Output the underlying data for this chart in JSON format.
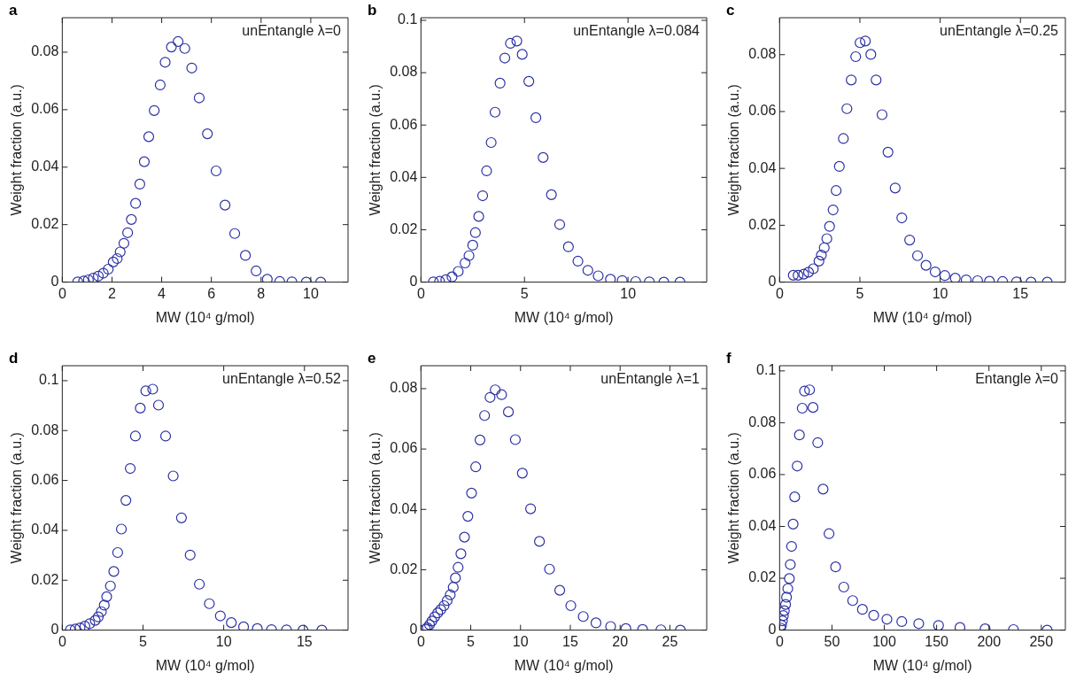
{
  "chart_data": [
    {
      "type": "scatter",
      "title": "a",
      "xlabel": "MW (10⁴ g/mol)",
      "ylabel": "Weight fraction (a.u.)",
      "annotations": [
        "unEntangle λ=0"
      ],
      "marker": "circle",
      "grid": false,
      "xlim": [
        0,
        11.5
      ],
      "ylim": [
        0,
        0.092
      ],
      "xticks": [
        0,
        2,
        4,
        6,
        8,
        10
      ],
      "yticks": [
        0,
        0.02,
        0.04,
        0.06,
        0.08
      ],
      "series": [
        {
          "color": "#2b31a3",
          "x": [
            0.62,
            0.86,
            1.05,
            1.25,
            1.45,
            1.65,
            1.85,
            2.05,
            2.21,
            2.33,
            2.48,
            2.63,
            2.78,
            2.95,
            3.12,
            3.3,
            3.48,
            3.7,
            3.94,
            4.14,
            4.39,
            4.66,
            4.93,
            5.21,
            5.51,
            5.84,
            6.19,
            6.55,
            6.94,
            7.37,
            7.8,
            8.25,
            8.75,
            9.24,
            9.82,
            10.4
          ],
          "values": [
            0.0001,
            0.0004,
            0.0008,
            0.0014,
            0.0021,
            0.0031,
            0.0045,
            0.007,
            0.0082,
            0.0105,
            0.0135,
            0.0172,
            0.0218,
            0.0274,
            0.0341,
            0.0419,
            0.0506,
            0.0597,
            0.0686,
            0.0765,
            0.0818,
            0.0837,
            0.0813,
            0.0745,
            0.0641,
            0.0516,
            0.0387,
            0.0268,
            0.0169,
            0.0093,
            0.0039,
            0.001,
            0.0002,
            0.0001,
            0,
            0
          ]
        }
      ]
    },
    {
      "type": "scatter",
      "title": "b",
      "xlabel": "MW (10⁴ g/mol)",
      "ylabel": "Weight fraction (a.u.)",
      "annotations": [
        "unEntangle λ=0.084"
      ],
      "marker": "circle",
      "grid": false,
      "xlim": [
        0,
        13.8
      ],
      "ylim": [
        0,
        0.101
      ],
      "xticks": [
        0,
        5,
        10
      ],
      "yticks": [
        0,
        0.02,
        0.04,
        0.06,
        0.08,
        0.1
      ],
      "series": [
        {
          "color": "#2b31a3",
          "x": [
            0.6,
            0.9,
            1.2,
            1.5,
            1.8,
            2.13,
            2.32,
            2.5,
            2.63,
            2.79,
            2.98,
            3.17,
            3.39,
            3.58,
            3.82,
            4.05,
            4.32,
            4.63,
            4.89,
            5.21,
            5.55,
            5.9,
            6.3,
            6.7,
            7.12,
            7.58,
            8.06,
            8.56,
            9.15,
            9.72,
            10.37,
            11.03,
            11.73,
            12.51
          ],
          "values": [
            0.0001,
            0.0003,
            0.0009,
            0.002,
            0.0041,
            0.0073,
            0.0101,
            0.0141,
            0.0189,
            0.0251,
            0.033,
            0.0425,
            0.0533,
            0.0649,
            0.076,
            0.0856,
            0.0912,
            0.0921,
            0.087,
            0.0767,
            0.0628,
            0.0476,
            0.0334,
            0.022,
            0.0135,
            0.008,
            0.0045,
            0.0024,
            0.0011,
            0.0006,
            0.0002,
            0.0001,
            0,
            0
          ]
        }
      ]
    },
    {
      "type": "scatter",
      "title": "c",
      "xlabel": "MW (10⁴ g/mol)",
      "ylabel": "Weight fraction (a.u.)",
      "annotations": [
        "unEntangle λ=0.25"
      ],
      "marker": "circle",
      "grid": false,
      "xlim": [
        0,
        17.8
      ],
      "ylim": [
        0,
        0.093
      ],
      "xticks": [
        0,
        5,
        10,
        15
      ],
      "yticks": [
        0,
        0.02,
        0.04,
        0.06,
        0.08
      ],
      "series": [
        {
          "color": "#2b31a3",
          "x": [
            0.85,
            1.15,
            1.5,
            1.8,
            2.1,
            2.45,
            2.6,
            2.78,
            2.94,
            3.11,
            3.33,
            3.52,
            3.72,
            3.97,
            4.19,
            4.46,
            4.74,
            5.01,
            5.34,
            5.68,
            6.01,
            6.38,
            6.75,
            7.2,
            7.61,
            8.1,
            8.59,
            9.12,
            9.69,
            10.29,
            10.94,
            11.62,
            12.33,
            13.07,
            13.89,
            14.76,
            15.66,
            16.67
          ],
          "values": [
            0.0024,
            0.0024,
            0.0028,
            0.0035,
            0.0047,
            0.0074,
            0.0095,
            0.0121,
            0.0153,
            0.0196,
            0.0254,
            0.0322,
            0.0407,
            0.0505,
            0.061,
            0.0711,
            0.0793,
            0.0842,
            0.0848,
            0.0801,
            0.0711,
            0.0589,
            0.0457,
            0.0331,
            0.0226,
            0.0148,
            0.0093,
            0.0059,
            0.0036,
            0.0023,
            0.0014,
            0.0008,
            0.0005,
            0.0003,
            0.0002,
            0.0001,
            0,
            0
          ]
        }
      ]
    },
    {
      "type": "scatter",
      "title": "d",
      "xlabel": "MW (10⁴ g/mol)",
      "ylabel": "Weight fraction (a.u.)",
      "annotations": [
        "unEntangle λ=0.52"
      ],
      "marker": "circle",
      "grid": false,
      "xlim": [
        0,
        17.7
      ],
      "ylim": [
        0,
        0.106
      ],
      "xticks": [
        0,
        5,
        10,
        15
      ],
      "yticks": [
        0,
        0.02,
        0.04,
        0.06,
        0.08,
        0.1
      ],
      "series": [
        {
          "color": "#2b31a3",
          "x": [
            0.5,
            0.8,
            1.1,
            1.4,
            1.7,
            2.04,
            2.23,
            2.42,
            2.6,
            2.75,
            2.98,
            3.19,
            3.43,
            3.66,
            3.94,
            4.21,
            4.53,
            4.83,
            5.17,
            5.6,
            5.96,
            6.4,
            6.87,
            7.38,
            7.92,
            8.49,
            9.11,
            9.79,
            10.47,
            11.23,
            12.08,
            12.96,
            13.89,
            14.91,
            16.08
          ],
          "values": [
            0.0001,
            0.0004,
            0.0009,
            0.0016,
            0.0026,
            0.0039,
            0.0053,
            0.0074,
            0.01,
            0.0134,
            0.0177,
            0.0235,
            0.0311,
            0.0405,
            0.052,
            0.0648,
            0.0778,
            0.089,
            0.0959,
            0.0966,
            0.0902,
            0.0778,
            0.0618,
            0.045,
            0.0301,
            0.0184,
            0.0106,
            0.0057,
            0.003,
            0.0013,
            0.0006,
            0.0002,
            0.0001,
            0,
            0
          ]
        }
      ]
    },
    {
      "type": "scatter",
      "title": "e",
      "xlabel": "MW (10⁴ g/mol)",
      "ylabel": "Weight fraction (a.u.)",
      "annotations": [
        "unEntangle λ=1"
      ],
      "marker": "circle",
      "grid": false,
      "xlim": [
        0,
        28.7
      ],
      "ylim": [
        0,
        0.0876
      ],
      "xticks": [
        0,
        5,
        10,
        15,
        20,
        25
      ],
      "yticks": [
        0,
        0.02,
        0.04,
        0.06,
        0.08
      ],
      "series": [
        {
          "color": "#2b31a3",
          "x": [
            0.46,
            0.64,
            0.86,
            1.1,
            1.38,
            1.68,
            1.99,
            2.32,
            2.63,
            2.94,
            3.24,
            3.46,
            3.73,
            4.01,
            4.37,
            4.71,
            5.08,
            5.5,
            5.93,
            6.39,
            6.94,
            7.46,
            8.1,
            8.78,
            9.48,
            10.18,
            11.01,
            11.9,
            12.91,
            13.94,
            15.05,
            16.3,
            17.58,
            19.05,
            20.58,
            22.26,
            24.1,
            26.05
          ],
          "values": [
            0.0003,
            0.0008,
            0.0018,
            0.003,
            0.0044,
            0.0057,
            0.0068,
            0.0081,
            0.0098,
            0.0117,
            0.0142,
            0.0173,
            0.0208,
            0.0253,
            0.0308,
            0.0377,
            0.0454,
            0.0541,
            0.063,
            0.0711,
            0.0771,
            0.0796,
            0.078,
            0.0723,
            0.0631,
            0.052,
            0.0402,
            0.0294,
            0.0202,
            0.0132,
            0.0081,
            0.0045,
            0.0024,
            0.0012,
            0.0005,
            0.0002,
            0.0001,
            0
          ]
        }
      ]
    },
    {
      "type": "scatter",
      "title": "f",
      "xlabel": "MW (10⁴ g/mol)",
      "ylabel": "Weight fraction (a.u.)",
      "annotations": [
        "Entangle λ=0"
      ],
      "marker": "circle",
      "grid": false,
      "xlim": [
        0,
        273
      ],
      "ylim": [
        0,
        0.102
      ],
      "xticks": [
        0,
        50,
        100,
        150,
        200,
        250
      ],
      "yticks": [
        0,
        0.02,
        0.04,
        0.06,
        0.08,
        0.1
      ],
      "series": [
        {
          "color": "#2b31a3",
          "x": [
            0.9,
            1.8,
            2.7,
            3.6,
            4.5,
            5.7,
            6.6,
            7.8,
            9.3,
            10.2,
            11.4,
            12.9,
            14.4,
            16.8,
            18.9,
            21.6,
            23.8,
            28.6,
            31.9,
            36.4,
            41.5,
            47.2,
            53.5,
            61.3,
            69.8,
            79.1,
            89.9,
            102.5,
            116.7,
            132.9,
            151.8,
            172.3,
            196.3,
            223.4,
            255.6
          ],
          "values": [
            0.0008,
            0.0019,
            0.0036,
            0.0056,
            0.0075,
            0.0099,
            0.0127,
            0.016,
            0.0199,
            0.0253,
            0.0323,
            0.0409,
            0.0514,
            0.0633,
            0.0753,
            0.0856,
            0.0922,
            0.0927,
            0.0859,
            0.0723,
            0.0544,
            0.0372,
            0.0244,
            0.0166,
            0.0114,
            0.008,
            0.0057,
            0.0042,
            0.0033,
            0.0025,
            0.0018,
            0.001,
            0.0005,
            0.0002,
            0
          ]
        }
      ]
    }
  ]
}
